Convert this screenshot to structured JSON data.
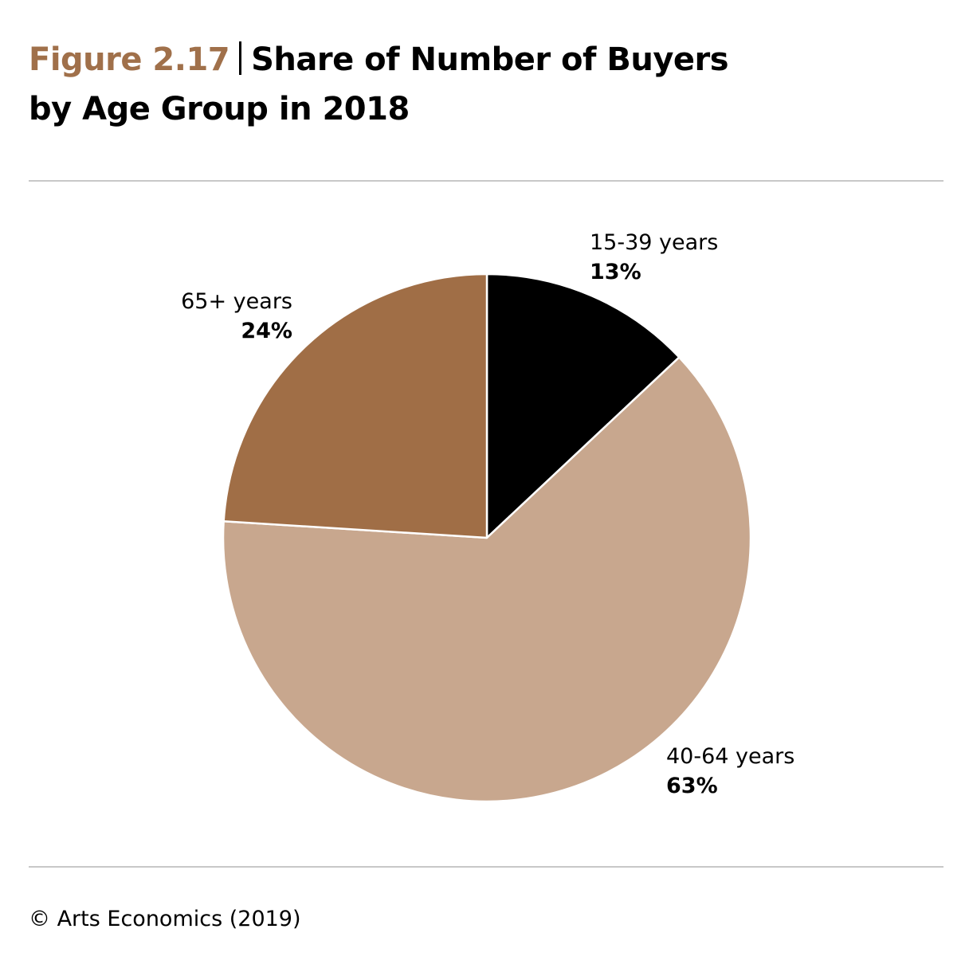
{
  "header": {
    "figure_label": "Figure 2.17",
    "title_line1": "Share of Number of Buyers",
    "title_line2": "by Age Group in 2018"
  },
  "colors": {
    "accent": "#a0704a",
    "rule": "#c8c8c8"
  },
  "chart_data": {
    "type": "pie",
    "title": "Share of Number of Buyers by Age Group in 2018",
    "start_angle_deg": 0,
    "direction": "clockwise",
    "slices": [
      {
        "label": "15-39 years",
        "value": 13,
        "display": "13%",
        "color": "#000000"
      },
      {
        "label": "40-64 years",
        "value": 63,
        "display": "63%",
        "color": "#c8a78e"
      },
      {
        "label": "65+ years",
        "value": 24,
        "display": "24%",
        "color": "#a06e46"
      }
    ]
  },
  "footer": {
    "source": "© Arts Economics (2019)"
  }
}
